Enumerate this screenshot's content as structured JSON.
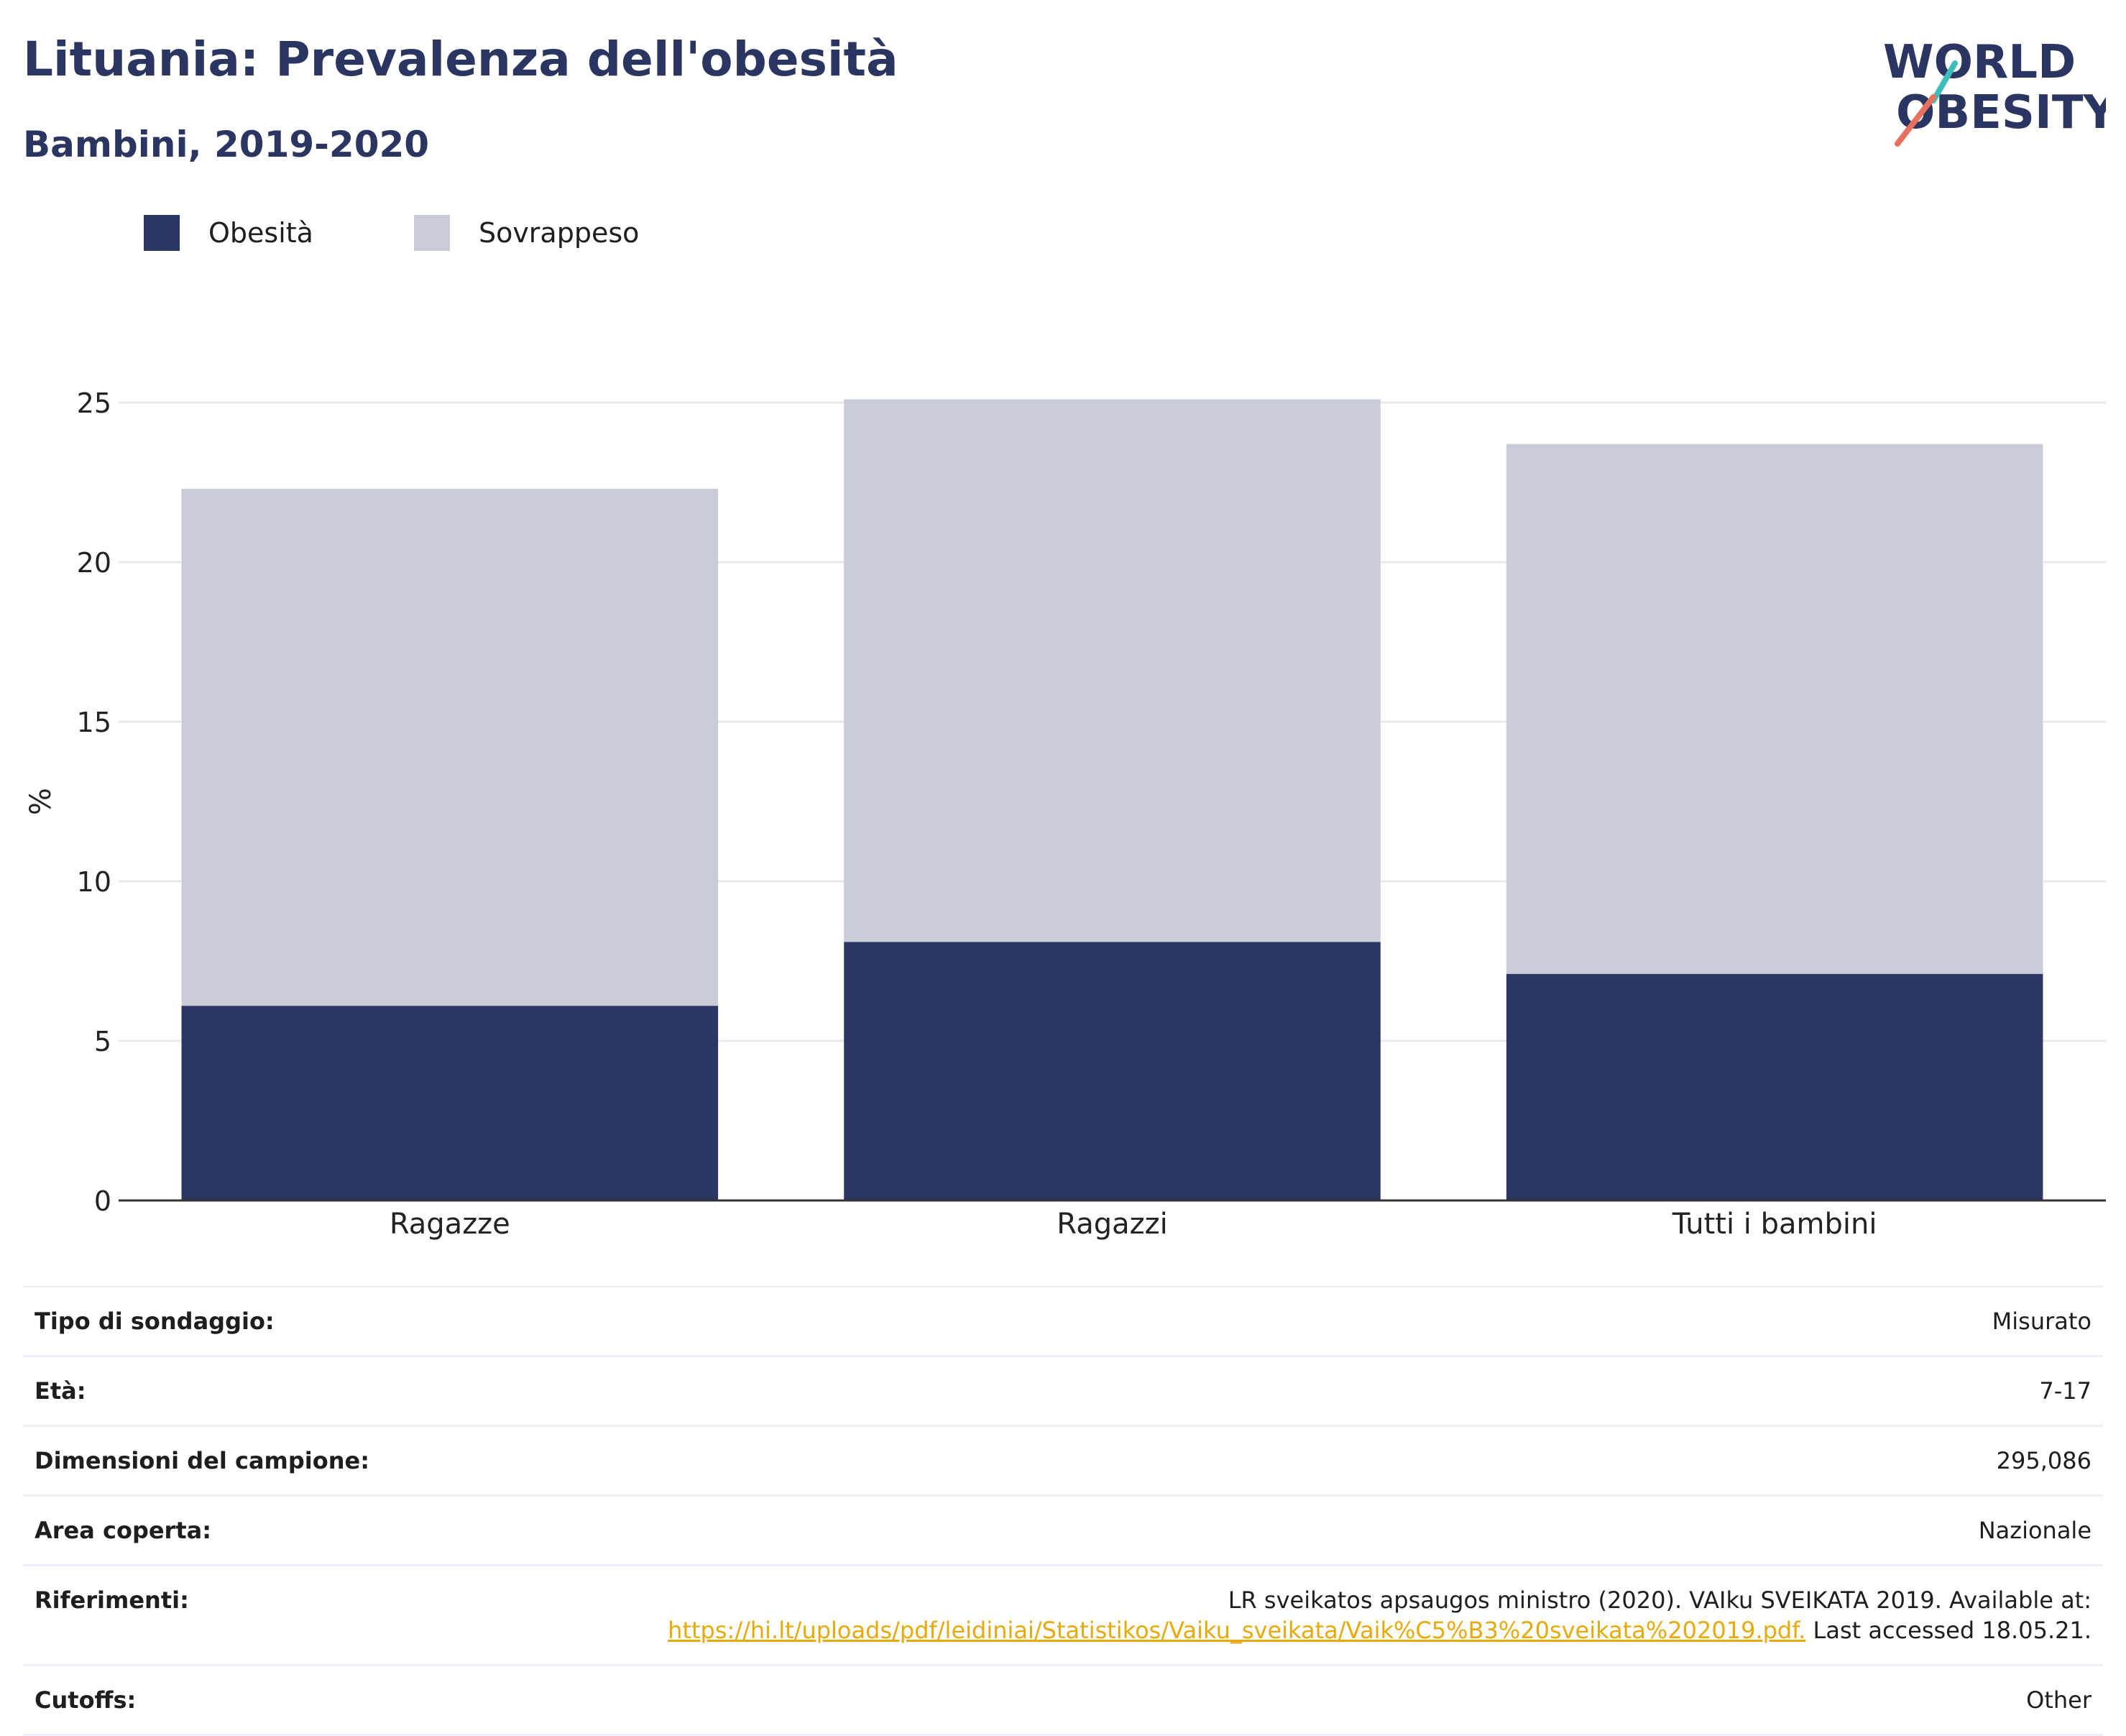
{
  "header": {
    "title": "Lituania: Prevalenza dell'obesità",
    "subtitle": "Bambini, 2019-2020"
  },
  "logo": {
    "line1": "WORLD",
    "line2": "OBESITY"
  },
  "colors": {
    "obesity": "#2b3663",
    "overweight": "#c9cbd7",
    "title": "#2b3561",
    "link": "#e8a90b"
  },
  "chart_data": {
    "type": "bar",
    "stacked": true,
    "categories": [
      "Ragazze",
      "Ragazzi",
      "Tutti i bambini"
    ],
    "series": [
      {
        "name": "Obesità",
        "values": [
          6.1,
          8.1,
          7.1
        ],
        "color": "#2b3663"
      },
      {
        "name": "Sovrappeso",
        "values": [
          16.2,
          17.0,
          16.6
        ],
        "color": "#c9cbd7"
      }
    ],
    "ylabel": "%",
    "ylim": [
      0,
      25
    ],
    "yticks": [
      0,
      5,
      10,
      15,
      20,
      25
    ],
    "grid": true,
    "legend": "top-left"
  },
  "info": {
    "survey_label": "Tipo di sondaggio:",
    "survey_value": "Misurato",
    "age_label": "Età:",
    "age_value": "7-17",
    "sample_label": "Dimensioni del campione:",
    "sample_value": "295,086",
    "area_label": "Area coperta:",
    "area_value": "Nazionale",
    "ref_label": "Riferimenti:",
    "ref_text1": "LR sveikatos apsaugos ministro (2020). VAIku SVEIKATA 2019. Available at:",
    "ref_link": "https://hi.lt/uploads/pdf/leidiniai/Statistikos/Vaiku_sveikata/Vaik%C5%B3%20sveikata%202019.pdf.",
    "ref_text2": " Last accessed 18.05.21.",
    "cutoffs_label": "Cutoffs:",
    "cutoffs_value": "Other"
  }
}
